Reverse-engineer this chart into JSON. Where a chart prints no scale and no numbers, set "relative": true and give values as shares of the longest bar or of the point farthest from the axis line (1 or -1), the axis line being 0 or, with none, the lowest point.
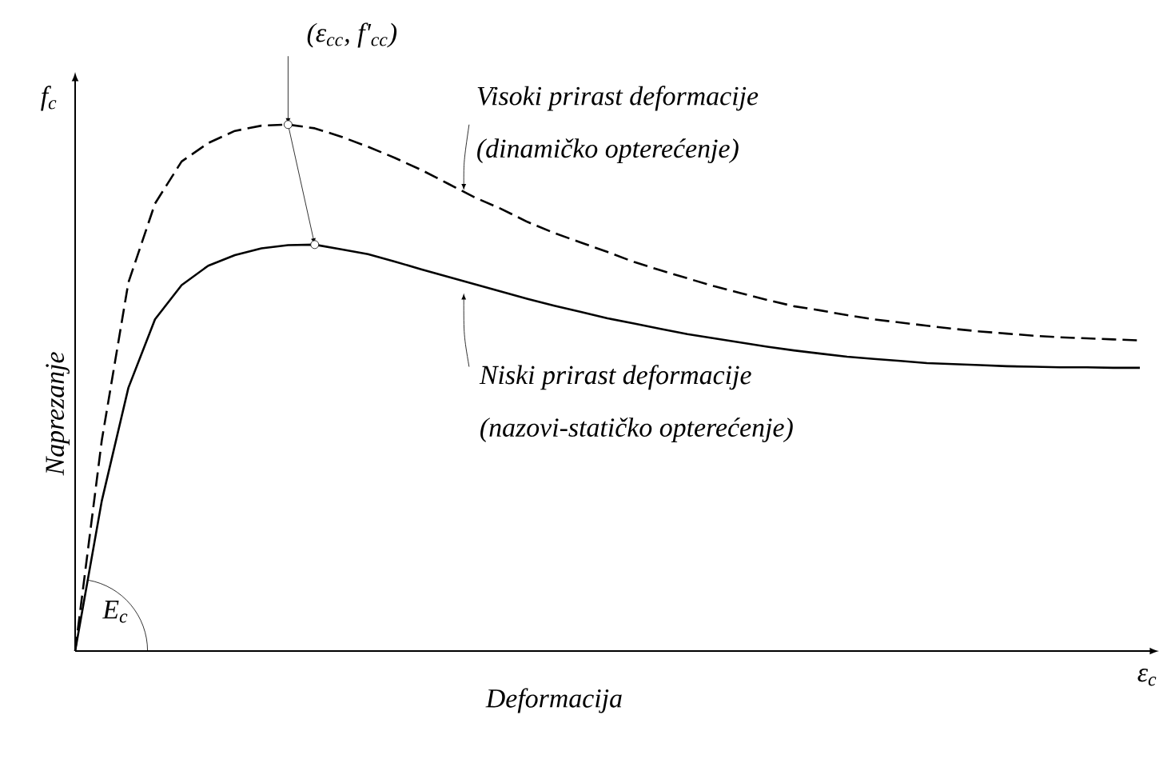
{
  "chart_data": {
    "type": "line",
    "relative": true,
    "xlabel": "Deformacija",
    "ylabel": "Naprezanje",
    "categories": [
      null,
      null,
      null,
      null,
      null,
      null,
      null,
      null,
      null,
      null,
      null,
      null,
      null,
      null,
      null,
      null,
      null,
      null,
      null,
      null,
      null,
      null,
      null,
      null,
      null,
      null,
      null,
      null,
      null,
      null,
      null,
      null,
      null,
      null,
      null,
      null,
      null,
      null,
      null,
      null,
      null
    ],
    "series": [
      {
        "color": "#000000",
        "line_style": "dashed",
        "values": [
          0,
          0.4,
          0.7,
          0.85,
          0.93,
          0.965,
          0.988,
          0.998,
          1.0,
          0.993,
          0.977,
          0.958,
          0.937,
          0.914,
          0.888,
          0.862,
          0.84,
          0.815,
          0.794,
          0.776,
          0.758,
          0.739,
          0.723,
          0.708,
          0.693,
          0.68,
          0.667,
          0.655,
          0.647,
          0.638,
          0.63,
          0.624,
          0.618,
          0.612,
          0.607,
          0.603,
          0.599,
          0.596,
          0.594,
          0.592,
          0.59
        ]
      },
      {
        "color": "#000000",
        "line_style": "solid",
        "values": [
          0,
          0.285,
          0.5,
          0.63,
          0.695,
          0.732,
          0.752,
          0.765,
          0.771,
          0.772,
          0.763,
          0.754,
          0.74,
          0.725,
          0.711,
          0.697,
          0.683,
          0.669,
          0.656,
          0.644,
          0.632,
          0.622,
          0.612,
          0.602,
          0.594,
          0.586,
          0.578,
          0.571,
          0.565,
          0.559,
          0.555,
          0.551,
          0.547,
          0.545,
          0.543,
          0.541,
          0.54,
          0.539,
          0.539,
          0.538,
          0.538
        ]
      }
    ],
    "annotations": [
      "*f*$_{c}$",
      "ε$_{c}$",
      "*E*$_{c}$",
      "(ε$_{cc}$, *f'*$_{cc}$)",
      "Visoki prirast deformacije",
      "(dinamičko opterećenje)",
      "Niski prirast deformacije",
      "(nazovi-statičko opterećenje)"
    ]
  }
}
